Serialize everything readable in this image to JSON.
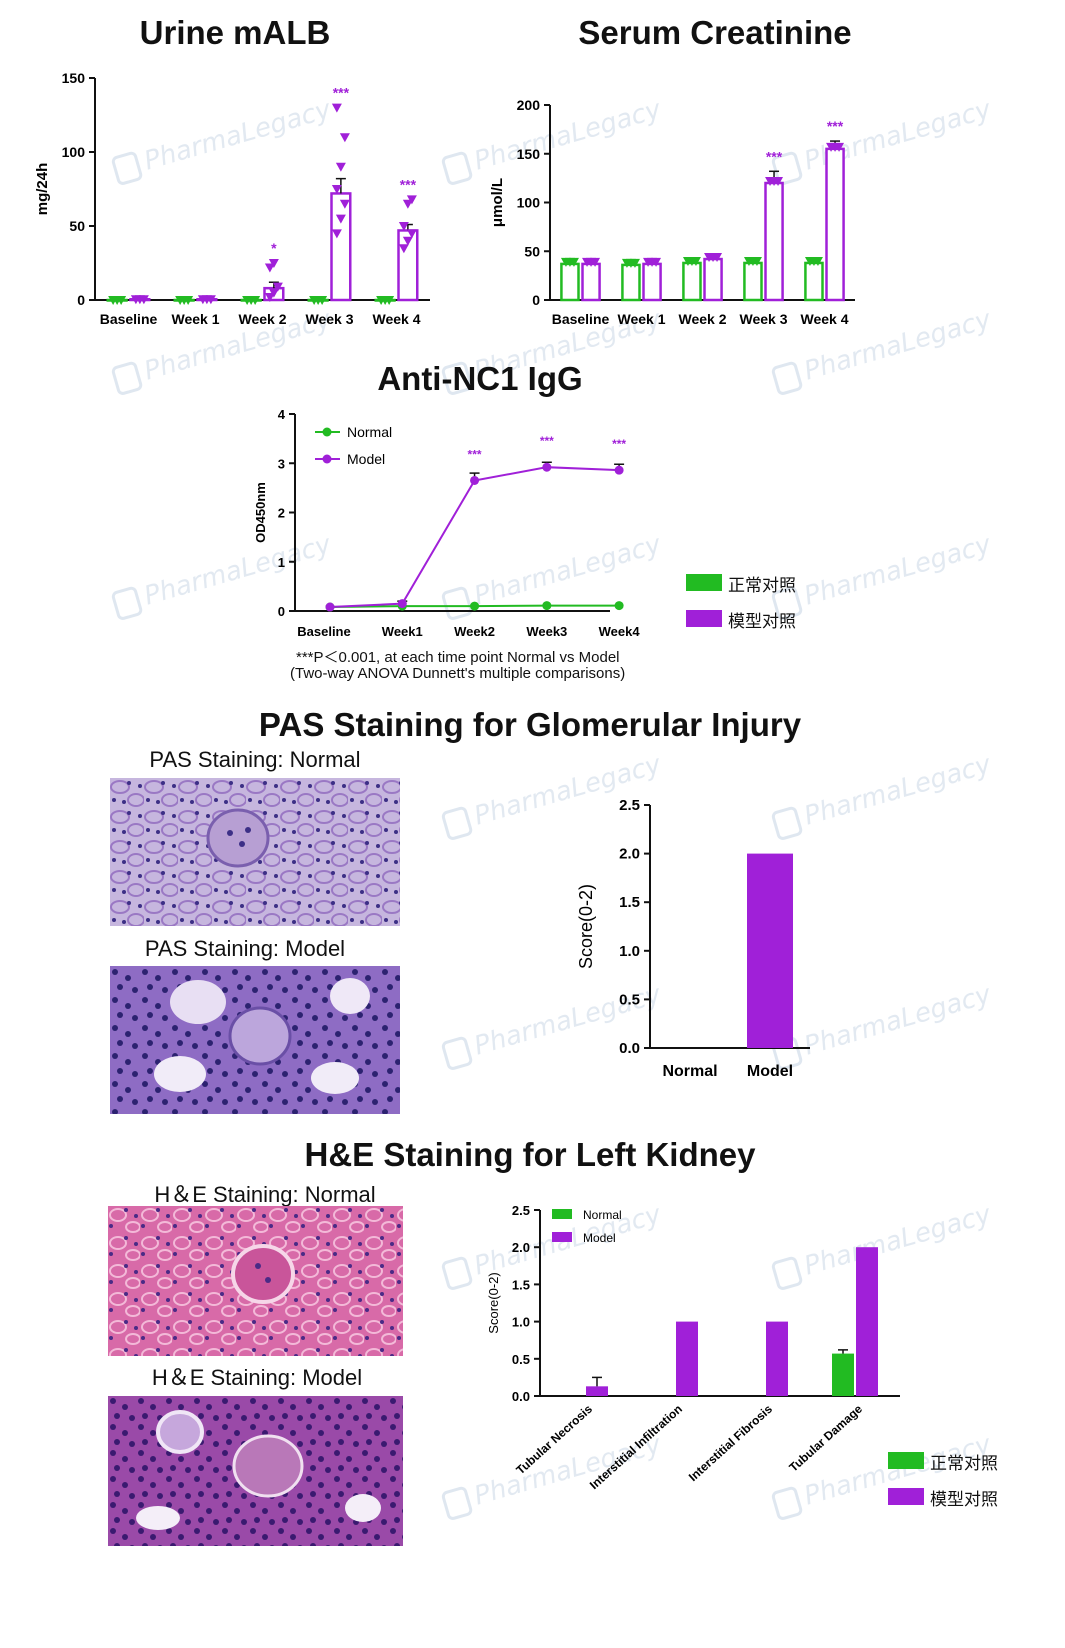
{
  "colors": {
    "normal": "#22bb22",
    "model": "#a020d8",
    "axis": "#111111"
  },
  "watermark": "PharmaLegacy",
  "urine": {
    "title": "Urine mALB",
    "chart_data": {
      "type": "bar",
      "title": "Urine mALB",
      "ylabel": "mg/24h",
      "ylim": [
        0,
        150
      ],
      "yticks": [
        "0",
        "50",
        "100",
        "150"
      ],
      "categories": [
        "Baseline",
        "Week 1",
        "Week 2",
        "Week 3",
        "Week 4"
      ],
      "series": [
        {
          "values": [
            0,
            0,
            0,
            0,
            0
          ],
          "err": [
            0,
            0,
            0,
            0,
            0
          ]
        },
        {
          "values": [
            0.5,
            0.5,
            8,
            72,
            47
          ],
          "err": [
            0.2,
            0.2,
            4,
            10,
            4
          ]
        }
      ],
      "points_model": [
        [],
        [],
        [
          2,
          5,
          9,
          22,
          25
        ],
        [
          45,
          55,
          65,
          75,
          90,
          110,
          130
        ],
        [
          35,
          40,
          45,
          50,
          65,
          68
        ]
      ],
      "significance": [
        "",
        "",
        "*",
        "***",
        "***"
      ]
    }
  },
  "serum": {
    "title": "Serum Creatinine",
    "chart_data": {
      "type": "bar",
      "title": "Serum Creatinine",
      "ylabel": "μmol/L",
      "ylim": [
        0,
        200
      ],
      "yticks": [
        "0",
        "50",
        "100",
        "150",
        "200"
      ],
      "categories": [
        "Baseline",
        "Week 1",
        "Week 2",
        "Week 3",
        "Week 4"
      ],
      "series": [
        {
          "values": [
            37,
            36,
            38,
            38,
            38
          ],
          "err": [
            2,
            2,
            2,
            3,
            2
          ]
        },
        {
          "values": [
            37,
            37,
            42,
            120,
            155
          ],
          "err": [
            2,
            2,
            2,
            12,
            8
          ]
        }
      ],
      "significance": [
        "",
        "",
        "",
        "***",
        "***"
      ]
    }
  },
  "anti": {
    "title": "Anti-NC1 IgG",
    "chart_data": {
      "type": "line",
      "title": "Anti-NC1 IgG",
      "ylabel": "OD450nm",
      "ylim": [
        0,
        4
      ],
      "yticks": [
        "0",
        "1",
        "2",
        "3",
        "4"
      ],
      "categories": [
        "Baseline",
        "Week1",
        "Week2",
        "Week3",
        "Week4"
      ],
      "series": [
        {
          "name": "Normal",
          "values": [
            0.08,
            0.1,
            0.1,
            0.11,
            0.11
          ],
          "err": [
            0.02,
            0.02,
            0.02,
            0.02,
            0.02
          ]
        },
        {
          "name": "Model",
          "values": [
            0.08,
            0.15,
            2.65,
            2.92,
            2.86
          ],
          "err": [
            0.02,
            0.05,
            0.15,
            0.1,
            0.12
          ]
        }
      ],
      "significance": [
        "",
        "",
        "***",
        "***",
        "***"
      ]
    },
    "note1": "***P＜0.001,  at each time point Normal vs Model",
    "note2": "(Two-way ANOVA Dunnett's multiple comparisons)"
  },
  "legend_cn": {
    "normal": "正常对照",
    "model": "模型对照"
  },
  "pas": {
    "title": "PAS Staining for Glomerular Injury",
    "normal_caption": "PAS Staining: Normal",
    "model_caption": "PAS Staining: Model",
    "chart_data": {
      "type": "bar",
      "ylabel": "Score(0-2)",
      "ylim": [
        0,
        2.5
      ],
      "yticks": [
        "0.0",
        "0.5",
        "1.0",
        "1.5",
        "2.0",
        "2.5"
      ],
      "categories": [
        "Normal",
        "Model"
      ],
      "values": [
        0,
        2.0
      ]
    }
  },
  "he": {
    "title": "H&E Staining for Left Kidney",
    "normal_caption": "H＆E Staining: Normal",
    "model_caption": "H＆E Staining: Model",
    "chart_data": {
      "type": "bar",
      "ylabel": "Score(0-2)",
      "ylim": [
        0,
        2.5
      ],
      "yticks": [
        "0.0",
        "0.5",
        "1.0",
        "1.5",
        "2.0",
        "2.5"
      ],
      "categories": [
        "Tubular Necrosis",
        "Interstitial Infiltration",
        "Interstitial Fibrosis",
        "Tubular Damage"
      ],
      "series": [
        {
          "name": "Normal",
          "values": [
            0,
            0,
            0,
            0.57
          ],
          "err": [
            0,
            0,
            0,
            0.05
          ]
        },
        {
          "name": "Model",
          "values": [
            0.13,
            1.0,
            1.0,
            2.0
          ],
          "err": [
            0.12,
            0,
            0,
            0
          ]
        }
      ]
    }
  }
}
